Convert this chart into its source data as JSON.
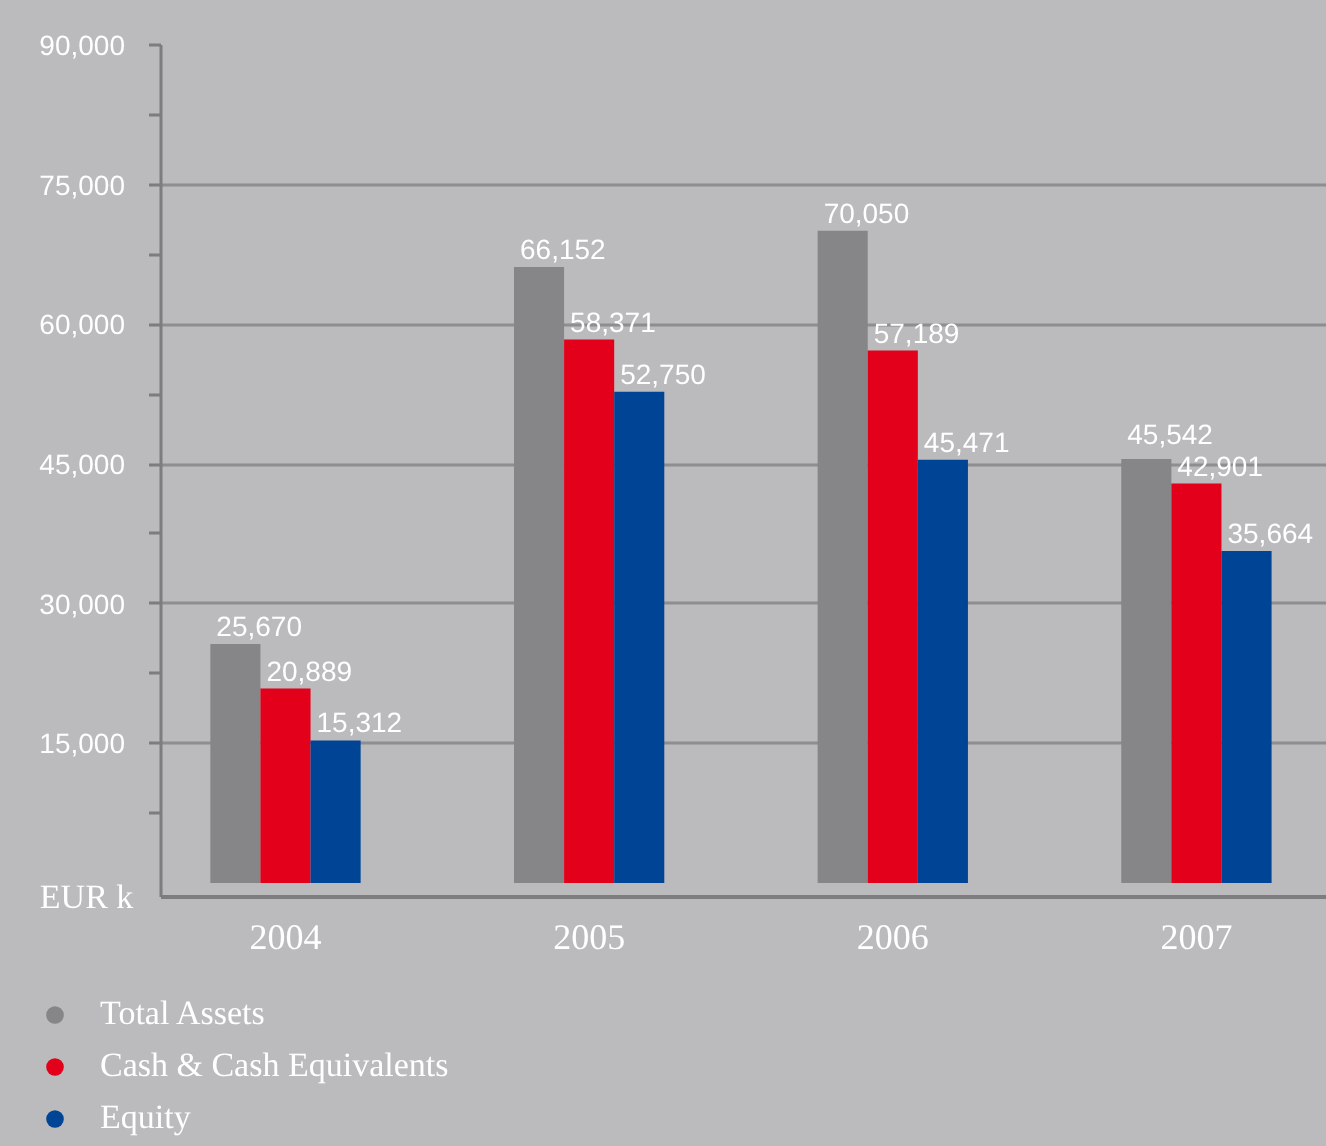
{
  "chart_data": {
    "type": "bar",
    "categories": [
      "2004",
      "2005",
      "2006",
      "2007"
    ],
    "series": [
      {
        "name": "Total Assets",
        "color": "#868688",
        "values": [
          25670,
          66152,
          70050,
          45542
        ],
        "value_labels": [
          "25,670",
          "66,152",
          "70,050",
          "45,542"
        ]
      },
      {
        "name": "Cash & Cash Equivalents",
        "color": "#e2001a",
        "values": [
          20889,
          58371,
          57189,
          42901
        ],
        "value_labels": [
          "20,889",
          "58,371",
          "57,189",
          "42,901"
        ]
      },
      {
        "name": "Equity",
        "color": "#004595",
        "values": [
          15312,
          52750,
          45471,
          35664
        ],
        "value_labels": [
          "15,312",
          "52,750",
          "45,471",
          "35,664"
        ]
      }
    ],
    "ylabel": "EUR k",
    "ylim": [
      -1500,
      90000
    ],
    "yticks": [
      {
        "value": 7500,
        "label": null
      },
      {
        "value": 15000,
        "label": "15,000"
      },
      {
        "value": 22500,
        "label": null
      },
      {
        "value": 30000,
        "label": "30,000"
      },
      {
        "value": 37500,
        "label": null
      },
      {
        "value": 45000,
        "label": "45,000"
      },
      {
        "value": 52500,
        "label": null
      },
      {
        "value": 60000,
        "label": "60,000"
      },
      {
        "value": 67500,
        "label": null
      },
      {
        "value": 75000,
        "label": "75,000"
      },
      {
        "value": 82500,
        "label": null
      },
      {
        "value": 90000,
        "label": "90,000"
      }
    ],
    "grid": "y",
    "legend": "bottom left"
  }
}
